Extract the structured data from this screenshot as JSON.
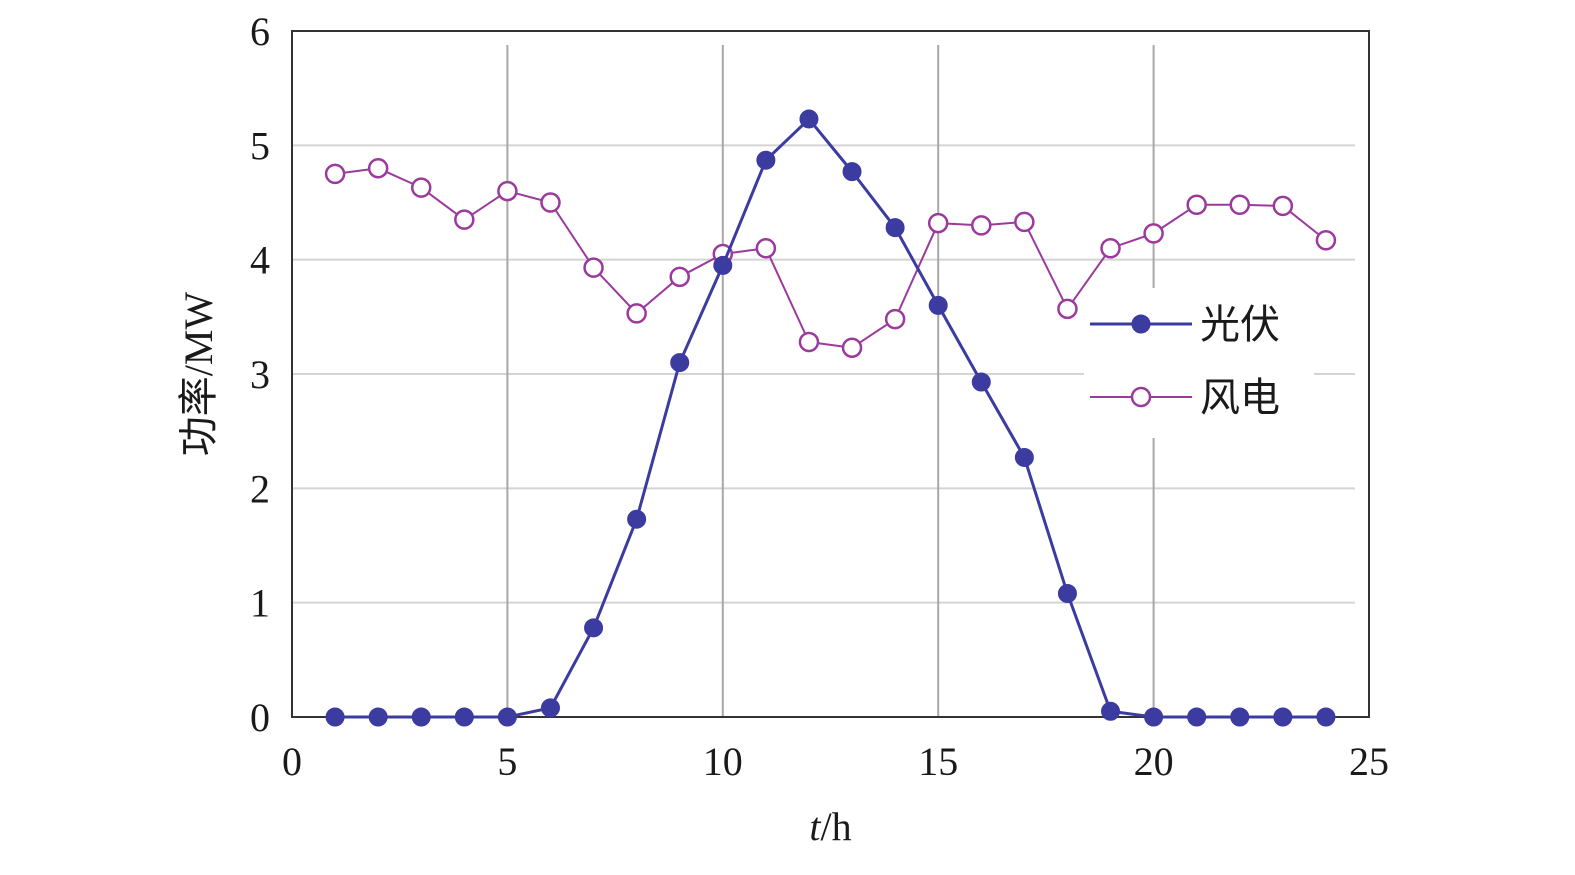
{
  "chart_data": {
    "type": "line",
    "xlabel_italic": "t",
    "xlabel_unit": "/h",
    "ylabel": "功率/MW",
    "xlim": [
      0,
      25
    ],
    "ylim": [
      0,
      6
    ],
    "xticks": [
      0,
      5,
      10,
      15,
      20,
      25
    ],
    "yticks": [
      0,
      1,
      2,
      3,
      4,
      5,
      6
    ],
    "x": [
      1,
      2,
      3,
      4,
      5,
      6,
      7,
      8,
      9,
      10,
      11,
      12,
      13,
      14,
      15,
      16,
      17,
      18,
      19,
      20,
      21,
      22,
      23,
      24
    ],
    "series": [
      {
        "name": "光伏",
        "color": "#3b3ba0",
        "marker": "filled-circle",
        "values": [
          0,
          0,
          0,
          0,
          0,
          0.08,
          0.78,
          1.73,
          3.1,
          3.95,
          4.87,
          5.23,
          4.77,
          4.28,
          3.6,
          2.93,
          2.27,
          1.08,
          0.05,
          0,
          0,
          0,
          0,
          0
        ]
      },
      {
        "name": "风电",
        "color": "#9b3a9c",
        "marker": "open-circle",
        "values": [
          4.75,
          4.8,
          4.63,
          4.35,
          4.6,
          4.5,
          3.93,
          3.53,
          3.85,
          4.05,
          4.1,
          3.28,
          3.23,
          3.48,
          4.32,
          4.3,
          4.33,
          3.57,
          4.1,
          4.23,
          4.48,
          4.48,
          4.47,
          4.17
        ]
      }
    ],
    "grid": true,
    "legend_position": "right"
  }
}
